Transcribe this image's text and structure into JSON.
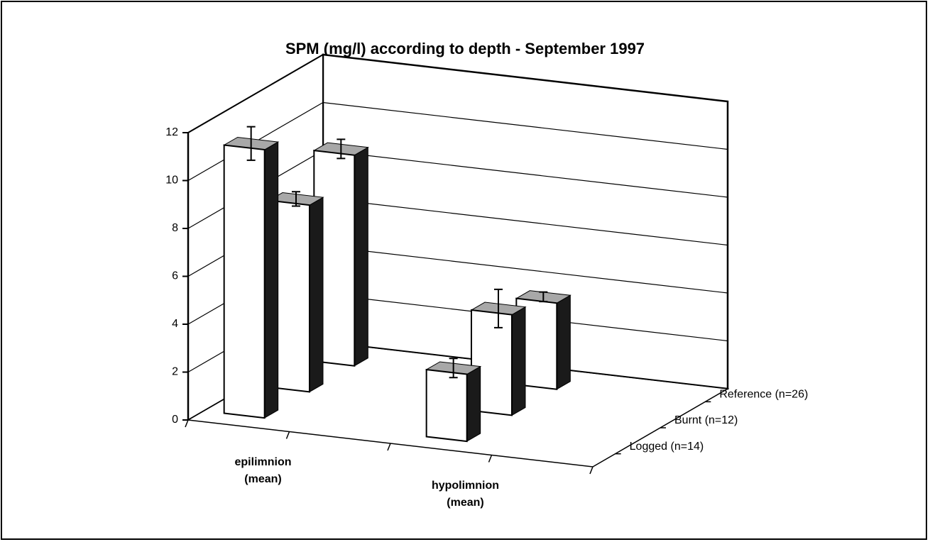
{
  "chart_data": {
    "type": "bar3d",
    "title": "SPM (mg/l) according to depth - September 1997",
    "categories": [
      [
        "epilimnion",
        "(mean)"
      ],
      [
        "hypolimnion",
        "(mean)"
      ]
    ],
    "series": [
      {
        "name": "Logged (n=14)",
        "values": [
          11.2,
          2.8
        ],
        "errors": [
          0.7,
          0.4
        ]
      },
      {
        "name": "Burnt (n=12)",
        "values": [
          7.8,
          4.2
        ],
        "errors": [
          0.3,
          0.8
        ]
      },
      {
        "name": "Reference (n=26)",
        "values": [
          8.8,
          3.6
        ],
        "errors": [
          0.4,
          0.2
        ]
      }
    ],
    "ylim": [
      0,
      12
    ],
    "yticks": [
      0,
      2,
      4,
      6,
      8,
      10,
      12
    ],
    "grid": true,
    "face_color": "#ffffff",
    "side_color": "#1a1a1a",
    "top_color": "#a8a8a8"
  }
}
